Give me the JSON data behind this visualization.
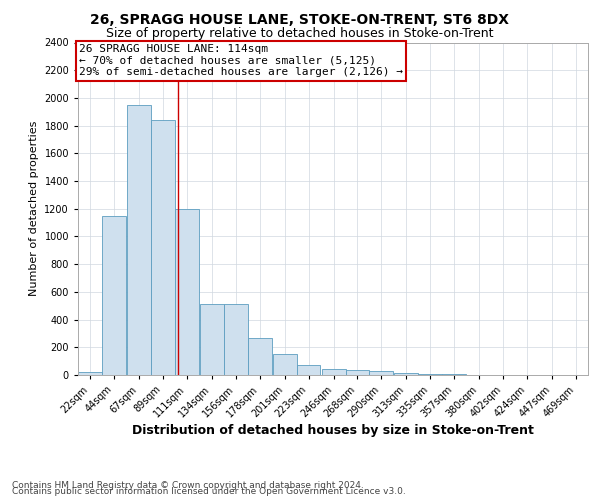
{
  "title": "26, SPRAGG HOUSE LANE, STOKE-ON-TRENT, ST6 8DX",
  "subtitle": "Size of property relative to detached houses in Stoke-on-Trent",
  "xlabel": "Distribution of detached houses by size in Stoke-on-Trent",
  "ylabel": "Number of detached properties",
  "bins": [
    22,
    44,
    67,
    89,
    111,
    134,
    156,
    178,
    201,
    223,
    246,
    268,
    290,
    313,
    335,
    357,
    380,
    402,
    424,
    447,
    469
  ],
  "values": [
    20,
    1150,
    1950,
    1840,
    1200,
    510,
    510,
    265,
    148,
    75,
    45,
    35,
    30,
    12,
    8,
    4,
    2,
    1,
    1,
    1,
    0
  ],
  "bar_color": "#cfe0ee",
  "bar_edge_color": "#5c9dc0",
  "reference_line_x": 114,
  "reference_line_color": "#cc0000",
  "annotation_line1": "26 SPRAGG HOUSE LANE: 114sqm",
  "annotation_line2": "← 70% of detached houses are smaller (5,125)",
  "annotation_line3": "29% of semi-detached houses are larger (2,126) →",
  "annotation_box_color": "#ffffff",
  "annotation_box_edge_color": "#cc0000",
  "ylim": [
    0,
    2400
  ],
  "yticks": [
    0,
    200,
    400,
    600,
    800,
    1000,
    1200,
    1400,
    1600,
    1800,
    2000,
    2200,
    2400
  ],
  "footer_line1": "Contains HM Land Registry data © Crown copyright and database right 2024.",
  "footer_line2": "Contains public sector information licensed under the Open Government Licence v3.0.",
  "title_fontsize": 10,
  "subtitle_fontsize": 9,
  "xlabel_fontsize": 9,
  "ylabel_fontsize": 8,
  "tick_fontsize": 7,
  "annotation_fontsize": 8,
  "footer_fontsize": 6.5,
  "background_color": "#ffffff",
  "grid_color": "#d0d8e0"
}
